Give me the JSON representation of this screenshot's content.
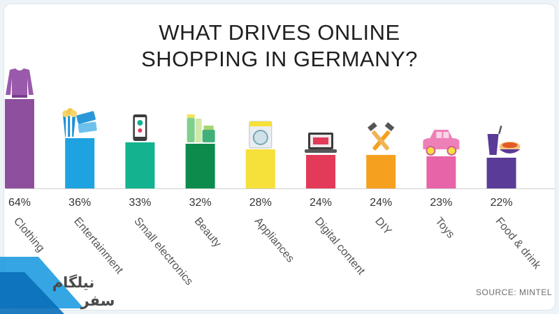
{
  "chart_data": {
    "type": "bar",
    "title_lines": [
      "WHAT DRIVES ONLINE",
      "SHOPPING IN GERMANY?"
    ],
    "categories": [
      "Clothing",
      "Entertainment",
      "Small electronics",
      "Beauty",
      "Appliances",
      "Digital content",
      "DIY",
      "Toys",
      "Food & drink"
    ],
    "values": [
      64,
      36,
      33,
      32,
      28,
      24,
      24,
      23,
      22
    ],
    "value_labels": [
      "64%",
      "36%",
      "33%",
      "32%",
      "28%",
      "24%",
      "24%",
      "23%",
      "22%"
    ],
    "colors": [
      "#8e4f9e",
      "#1ea3e0",
      "#13b38f",
      "#0d8b4c",
      "#f6e03a",
      "#e23a58",
      "#f5a01f",
      "#e864a8",
      "#5a3b97"
    ],
    "icons": [
      "sweater-icon",
      "popcorn-tickets-icon",
      "smartphone-icon",
      "cosmetics-icon",
      "washing-machine-icon",
      "laptop-icon",
      "tools-icon",
      "toy-car-icon",
      "food-drink-icon"
    ],
    "ylim": [
      0,
      64
    ],
    "xlabel": "",
    "ylabel": "",
    "grid": false
  },
  "source": "SOURCE: MINTEL",
  "watermark": "نیلگام سفر"
}
